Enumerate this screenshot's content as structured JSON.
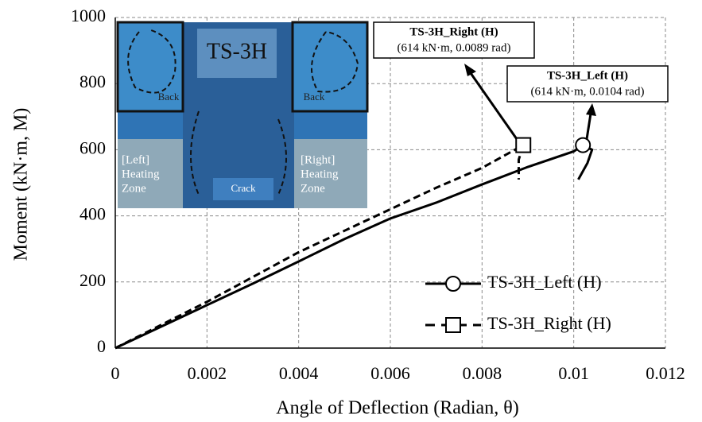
{
  "chart_data": {
    "type": "line",
    "xlabel": "Angle of Deflection (Radian, θ)",
    "ylabel": "Moment (kN·m, M)",
    "xlim": [
      0,
      0.012
    ],
    "xticks": [
      0,
      0.002,
      0.004,
      0.006,
      0.008,
      0.01,
      0.012
    ],
    "ylim": [
      0,
      1000
    ],
    "yticks": [
      0,
      200,
      400,
      600,
      800,
      1000
    ],
    "grid": true,
    "legend": "lower right",
    "series": [
      {
        "name": "TS-3H_Left (H)",
        "color": "#000000",
        "dash": false,
        "marker": "circle",
        "x": [
          0,
          0.001,
          0.002,
          0.003,
          0.004,
          0.005,
          0.006,
          0.007,
          0.008,
          0.009,
          0.01,
          0.0102,
          0.0104,
          0.0103,
          0.0101
        ],
        "values": [
          0,
          65,
          130,
          195,
          262,
          330,
          392,
          440,
          495,
          548,
          595,
          614,
          600,
          560,
          510
        ]
      },
      {
        "name": "TS-3H_Right (H)",
        "color": "#000000",
        "dash": true,
        "marker": "square",
        "x": [
          0,
          0.001,
          0.002,
          0.003,
          0.004,
          0.005,
          0.006,
          0.007,
          0.008,
          0.0089,
          0.0088,
          0.0088
        ],
        "values": [
          0,
          70,
          140,
          215,
          290,
          355,
          420,
          485,
          545,
          614,
          570,
          510
        ]
      }
    ],
    "annotations": [
      {
        "title": "TS-3H_Right (H)",
        "text": "(614 kN·m, 0.0089 rad)"
      },
      {
        "title": "TS-3H_Left (H)",
        "text": "(614 kN·m, 0.0104 rad)"
      }
    ],
    "inset": {
      "title": "TS-3H",
      "back_left": "Back",
      "back_right": "Back",
      "left_zone": [
        "[Left]",
        "Heating",
        "Zone"
      ],
      "right_zone": [
        "[Right]",
        "Heating",
        "Zone"
      ],
      "crack": "Crack"
    }
  }
}
